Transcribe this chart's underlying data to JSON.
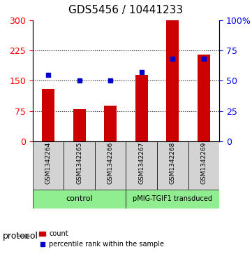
{
  "title": "GDS5456 / 10441233",
  "samples": [
    "GSM1342264",
    "GSM1342265",
    "GSM1342266",
    "GSM1342267",
    "GSM1342268",
    "GSM1342269"
  ],
  "counts": [
    130,
    80,
    88,
    165,
    300,
    215
  ],
  "percentiles": [
    55,
    50,
    50,
    57,
    68,
    68
  ],
  "bar_color": "#cc0000",
  "dot_color": "#0000cc",
  "left_ylim": [
    0,
    300
  ],
  "right_ylim": [
    0,
    100
  ],
  "left_yticks": [
    0,
    75,
    150,
    225,
    300
  ],
  "right_yticks": [
    0,
    25,
    50,
    75,
    100
  ],
  "right_yticklabels": [
    "0",
    "25",
    "50",
    "75",
    "100%"
  ],
  "grid_values": [
    75,
    150,
    225
  ],
  "protocol_groups": [
    {
      "label": "control",
      "samples": [
        0,
        1,
        2
      ],
      "color": "#90ee90"
    },
    {
      "label": "pMIG-TGIF1 transduced",
      "samples": [
        3,
        4,
        5
      ],
      "color": "#90ee90"
    }
  ],
  "legend_count_label": "count",
  "legend_pct_label": "percentile rank within the sample",
  "protocol_label": "protocol",
  "bg_color": "#d3d3d3",
  "plot_bg": "#ffffff"
}
